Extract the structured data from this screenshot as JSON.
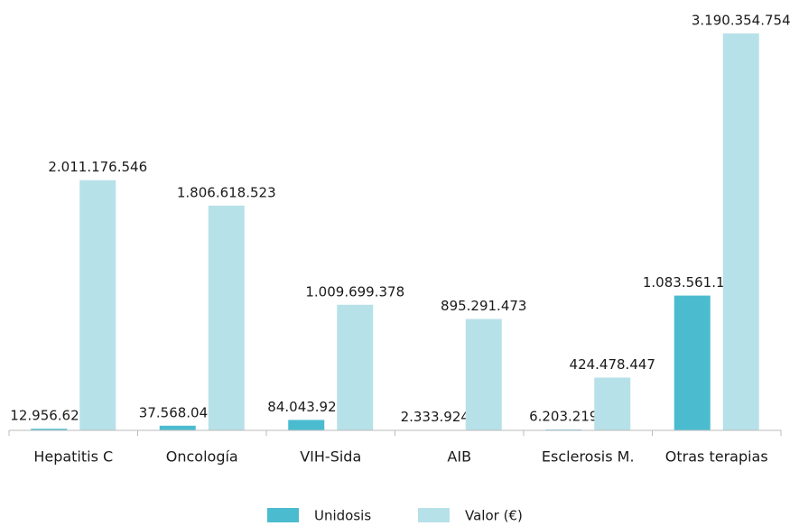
{
  "chart_data": {
    "type": "bar",
    "categories": [
      "Hepatitis C",
      "Oncología",
      "VIH-Sida",
      "AIB",
      "Esclerosis M.",
      "Otras terapias"
    ],
    "series": [
      {
        "name": "Unidosis",
        "color": "#4bbccf",
        "values": [
          12956621,
          37568048,
          84043920,
          2333924,
          6203219,
          1083561109
        ],
        "value_labels": [
          "12.956.621",
          "37.568.048",
          "84.043.920",
          "2.333.924",
          "6.203.219",
          "1.083.561.109"
        ]
      },
      {
        "name": "Valor (€)",
        "color": "#b7e1e8",
        "values": [
          2011176546,
          1806618523,
          1009699378,
          895291473,
          424478447,
          3190354754
        ],
        "value_labels": [
          "2.011.176.546",
          "1.806.618.523",
          "1.009.699.378",
          "895.291.473",
          "424.478.447",
          "3.190.354.754"
        ]
      }
    ],
    "ylim": [
      0,
      3300000000
    ],
    "legend": "bottom"
  }
}
